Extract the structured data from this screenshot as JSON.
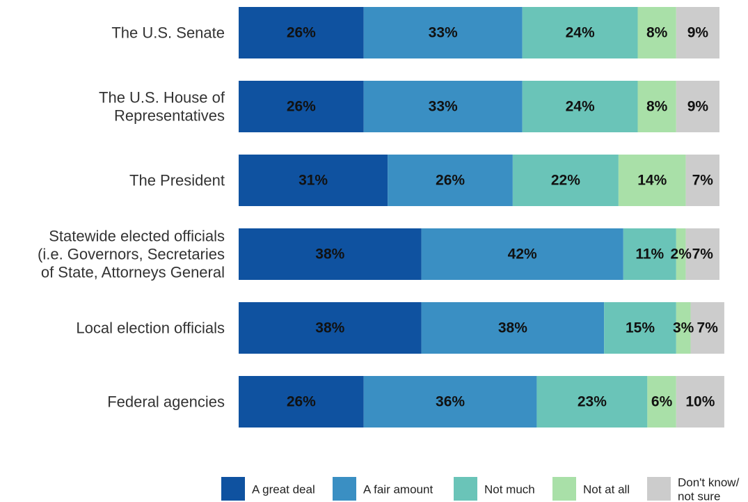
{
  "chart_data": {
    "type": "bar",
    "orientation": "horizontal",
    "stacked": true,
    "categories": [
      "The U.S. Senate",
      "The U.S. House of Representatives",
      "The President",
      "Statewide elected officials (i.e. Governors, Secretaries of State, Attorneys General",
      "Local election officials",
      "Federal agencies"
    ],
    "category_lines": [
      [
        "The U.S. Senate"
      ],
      [
        "The U.S. House of",
        "Representatives"
      ],
      [
        "The President"
      ],
      [
        "Statewide elected officials",
        "(i.e. Governors, Secretaries",
        "of State, Attorneys General"
      ],
      [
        "Local election officials"
      ],
      [
        "Federal agencies"
      ]
    ],
    "series": [
      {
        "name": "A great deal",
        "color": "#0f52a0",
        "values": [
          26,
          26,
          31,
          38,
          38,
          26
        ]
      },
      {
        "name": "A fair amount",
        "color": "#3a8fc3",
        "values": [
          33,
          33,
          26,
          42,
          38,
          36
        ]
      },
      {
        "name": "Not much",
        "color": "#6ac4b8",
        "values": [
          24,
          24,
          22,
          11,
          15,
          23
        ]
      },
      {
        "name": "Not at all",
        "color": "#a9e0a8",
        "values": [
          8,
          8,
          14,
          2,
          3,
          6
        ]
      },
      {
        "name": "Don't know/ not sure",
        "color": "#cccccc",
        "values": [
          9,
          9,
          7,
          7,
          7,
          10
        ]
      }
    ],
    "legend_lines": [
      [
        "A great deal"
      ],
      [
        "A fair amount"
      ],
      [
        "Not much"
      ],
      [
        "Not at all"
      ],
      [
        "Don't know/",
        "not sure"
      ]
    ],
    "value_suffix": "%",
    "xlim": [
      0,
      100
    ],
    "legend_position": "bottom",
    "grid": false,
    "title": "",
    "xlabel": "",
    "ylabel": ""
  }
}
